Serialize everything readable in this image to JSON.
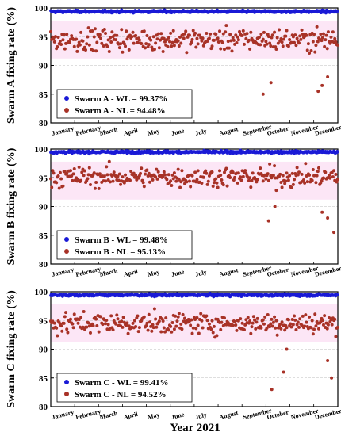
{
  "x_axis_title": "Year 2021",
  "colors": {
    "wl": "#1a1ad6",
    "nl": "#a83227",
    "band": "#f8c8ec"
  },
  "chart_data": [
    {
      "type": "scatter",
      "ylabel": "Swarm A fixing rate (%)",
      "ylim": [
        80,
        100
      ],
      "yticks": [
        80,
        85,
        90,
        95,
        100
      ],
      "grid": "horizontal dashed",
      "legend": "bottom-left",
      "x_categories": [
        "January",
        "February",
        "March",
        "April",
        "May",
        "June",
        "July",
        "August",
        "September",
        "October",
        "November",
        "December"
      ],
      "series": [
        {
          "name": "Swarm A - WL = 99.37%",
          "mean": 99.37,
          "spread": 0.4
        },
        {
          "name": "Swarm A - NL = 94.48%",
          "mean": 94.48,
          "spread": 2.6,
          "outliers": [
            [
              270,
              85
            ],
            [
              280,
              87
            ],
            [
              340,
              85.5
            ],
            [
              345,
              86.5
            ],
            [
              352,
              88
            ]
          ]
        }
      ]
    },
    {
      "type": "scatter",
      "ylabel": "Swarm B fixing rate (%)",
      "ylim": [
        80,
        100
      ],
      "yticks": [
        80,
        85,
        90,
        95,
        100
      ],
      "grid": "horizontal dashed",
      "legend": "bottom-left",
      "x_categories": [
        "January",
        "February",
        "March",
        "April",
        "May",
        "June",
        "July",
        "August",
        "September",
        "October",
        "November",
        "December"
      ],
      "series": [
        {
          "name": "Swarm B - WL = 99.48%",
          "mean": 99.48,
          "spread": 0.4
        },
        {
          "name": "Swarm B - NL = 95.13%",
          "mean": 95.13,
          "spread": 2.4,
          "outliers": [
            [
              277,
              87.5
            ],
            [
              285,
              90
            ],
            [
              345,
              89
            ],
            [
              352,
              88
            ],
            [
              360,
              85.5
            ]
          ]
        }
      ]
    },
    {
      "type": "scatter",
      "ylabel": "Swarm C fixing rate (%)",
      "ylim": [
        80,
        100
      ],
      "yticks": [
        80,
        85,
        90,
        95,
        100
      ],
      "grid": "horizontal dashed",
      "legend": "bottom-left",
      "x_categories": [
        "January",
        "February",
        "March",
        "April",
        "May",
        "June",
        "July",
        "August",
        "September",
        "October",
        "November",
        "December"
      ],
      "series": [
        {
          "name": "Swarm C - WL = 99.41%",
          "mean": 99.41,
          "spread": 0.4
        },
        {
          "name": "Swarm C - NL = 94.52%",
          "mean": 94.52,
          "spread": 2.4,
          "outliers": [
            [
              281,
              83
            ],
            [
              296,
              86
            ],
            [
              300,
              90
            ],
            [
              352,
              88
            ],
            [
              357,
              85
            ]
          ]
        }
      ]
    }
  ]
}
